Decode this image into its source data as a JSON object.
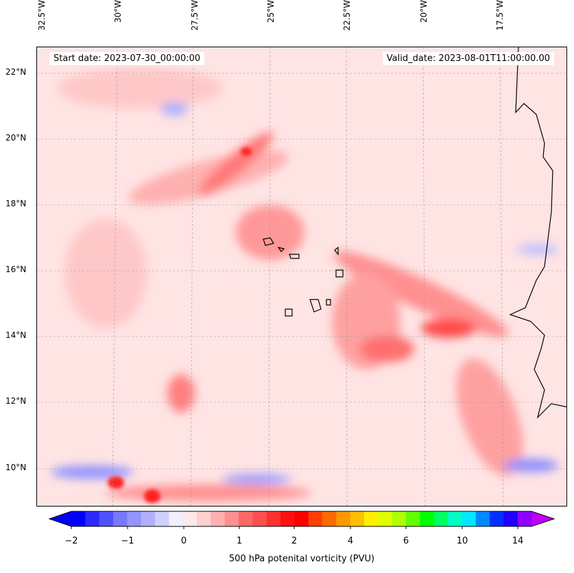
{
  "header": {
    "start_date": "Start date: 2023-07-30_00:00:00",
    "valid_date": "Valid_date: 2023-08-01T11:00:00.00"
  },
  "map": {
    "lon_labels": [
      "32.5°W",
      "30°W",
      "27.5°W",
      "25°W",
      "22.5°W",
      "20°W",
      "17.5°W"
    ],
    "lat_labels": [
      "22°N",
      "20°N",
      "18°N",
      "16°N",
      "14°N",
      "12°N",
      "10°N"
    ]
  },
  "colorbar": {
    "label": "500 hPa potenital vorticity (PVU)",
    "ticks": [
      "−2",
      "−1",
      "0",
      "1",
      "2",
      "4",
      "6",
      "10",
      "14"
    ],
    "colors": [
      "#0000ff",
      "#2a2aff",
      "#5050ff",
      "#7878ff",
      "#9494ff",
      "#b0b0ff",
      "#d0d0ff",
      "#f0f0ff",
      "#ffe8e8",
      "#ffd0d0",
      "#ffb0b0",
      "#ff9090",
      "#ff6868",
      "#ff5050",
      "#ff3030",
      "#ff1010",
      "#ff0000",
      "#ff4000",
      "#ff6a00",
      "#ff9800",
      "#ffc000",
      "#fff000",
      "#e0ff00",
      "#b0ff00",
      "#60ff00",
      "#00ff00",
      "#00ff60",
      "#00ffc0",
      "#00e8ff",
      "#0088ff",
      "#0030ff",
      "#2000ff",
      "#9000ff"
    ],
    "under_color": "#0000ff",
    "over_color": "#c000ff"
  }
}
